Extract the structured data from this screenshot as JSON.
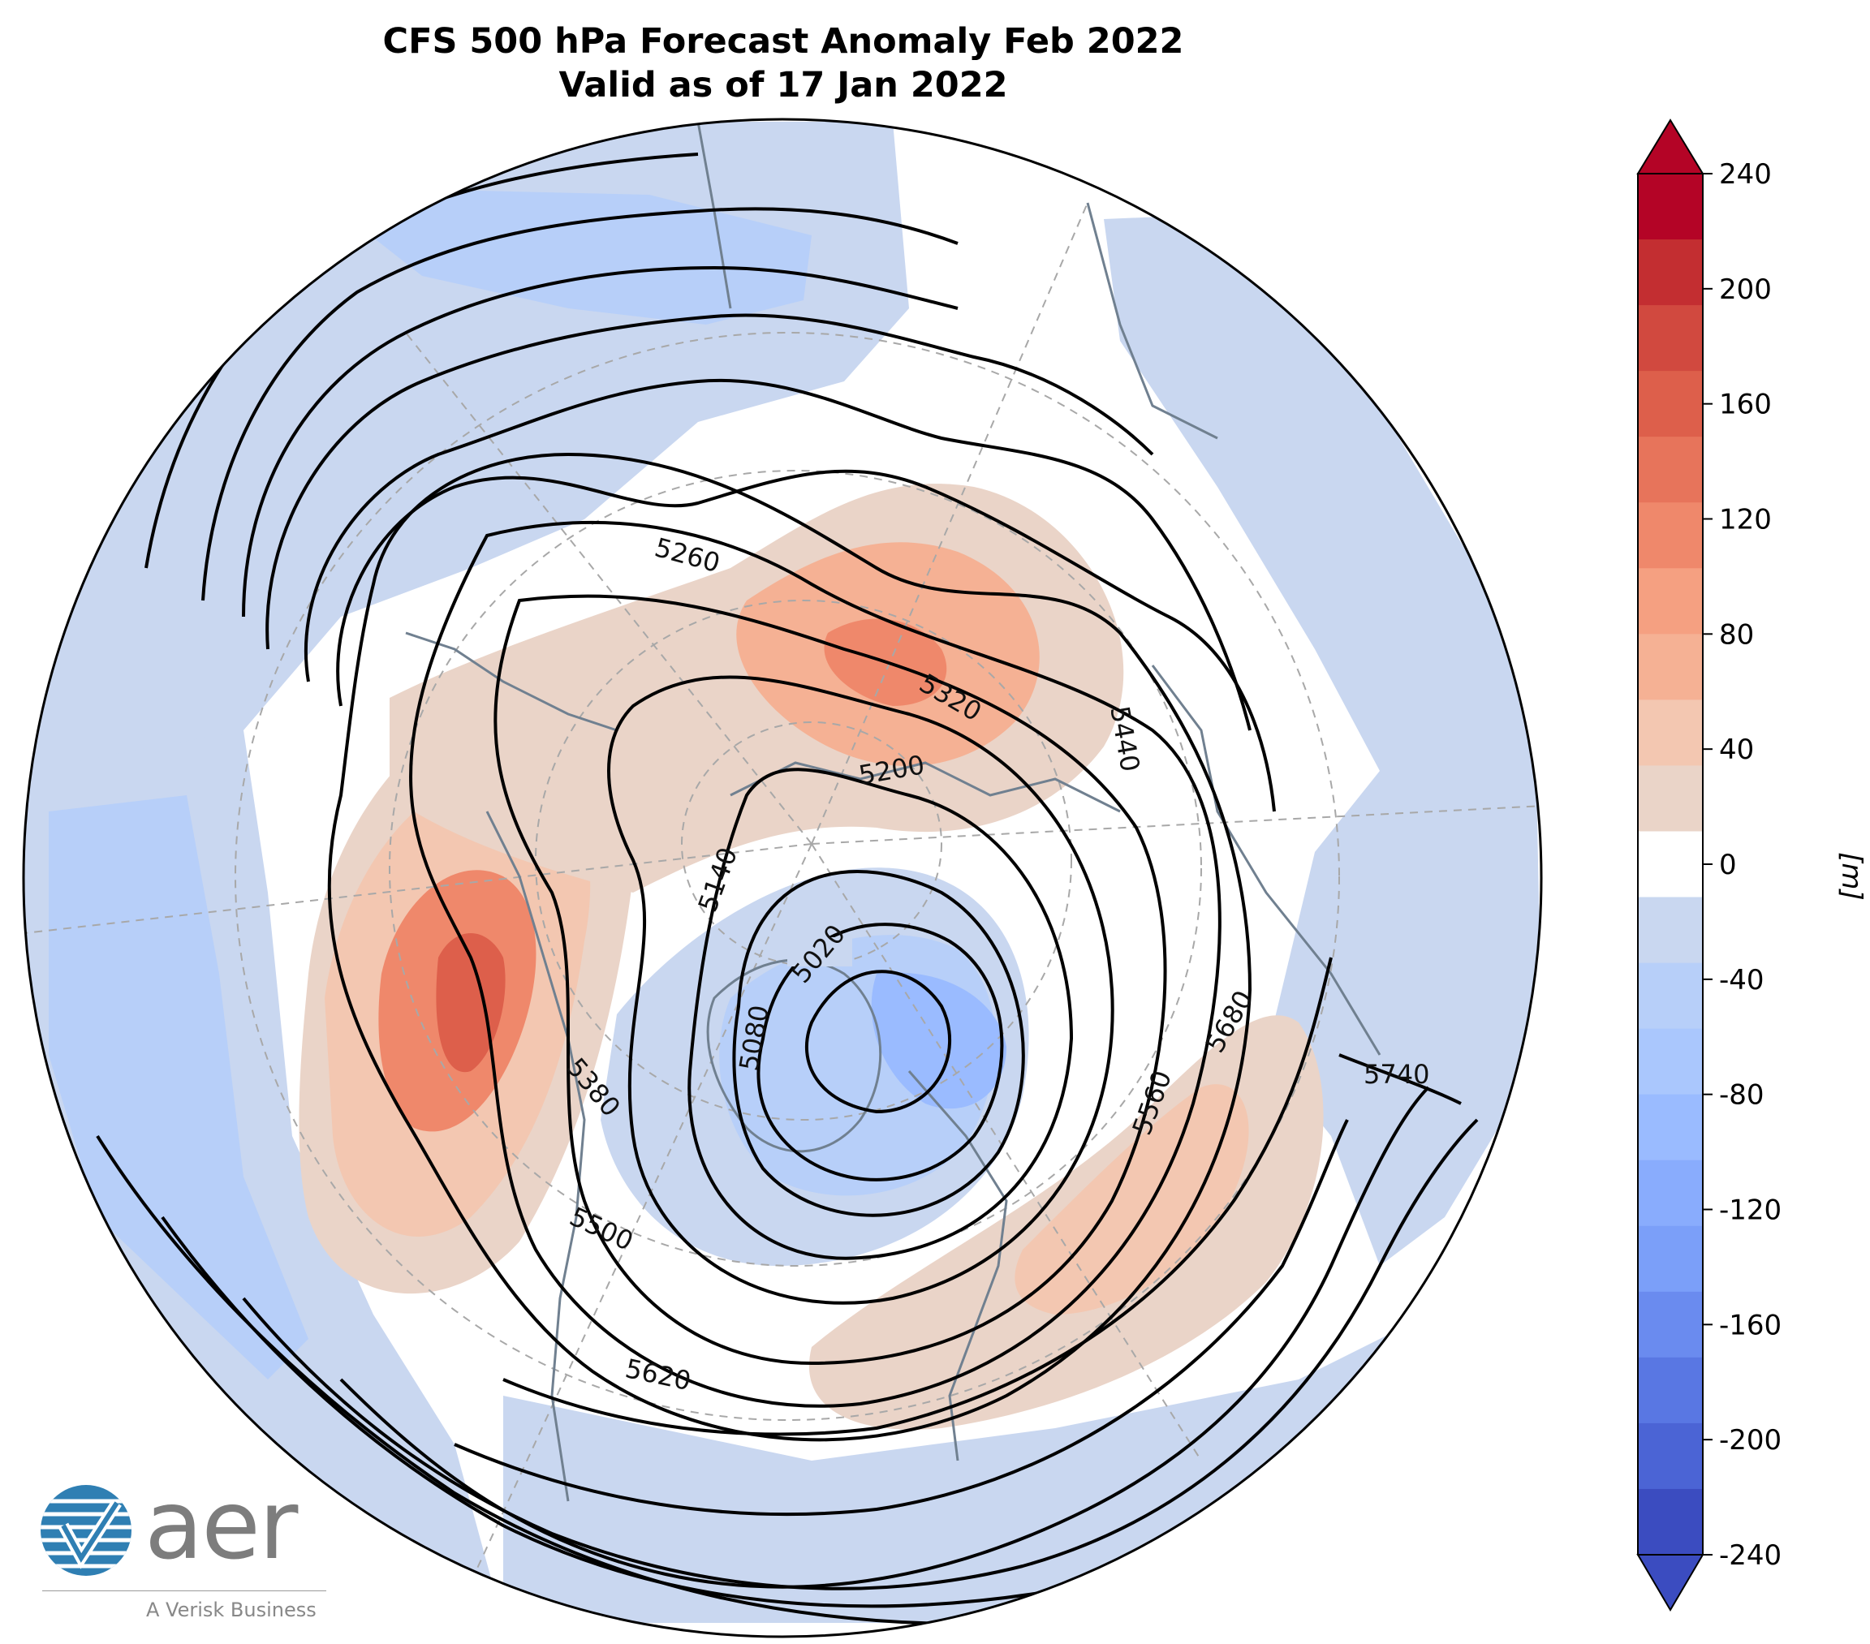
{
  "title": {
    "line1": "CFS 500 hPa Forecast Anomaly Feb 2022",
    "line2": "Valid as of 17 Jan 2022"
  },
  "colorbar": {
    "unit": "[m]",
    "ticks": [
      "240",
      "200",
      "160",
      "120",
      "80",
      "40",
      "0",
      "-40",
      "-80",
      "-120",
      "-160",
      "-200",
      "-240"
    ],
    "colors": [
      "#b40426",
      "#c32e31",
      "#d1493f",
      "#dd5f4b",
      "#e7745b",
      "#ef886b",
      "#f5a081",
      "#f5b194",
      "#f3c7b1",
      "#ead4c8",
      "#ffffff",
      "#c9d7f0",
      "#b7cff9",
      "#aac7fd",
      "#9abbff",
      "#89acfd",
      "#7b9ff9",
      "#6a8bef",
      "#5977e3",
      "#4b64d5",
      "#3b4cc0"
    ]
  },
  "contour_labels": [
    "5020",
    "5080",
    "5140",
    "5200",
    "5260",
    "5320",
    "5380",
    "5440",
    "5500",
    "5560",
    "5620",
    "5680",
    "5740"
  ],
  "logo": {
    "word": "aer",
    "tagline": "A Verisk Business"
  }
}
